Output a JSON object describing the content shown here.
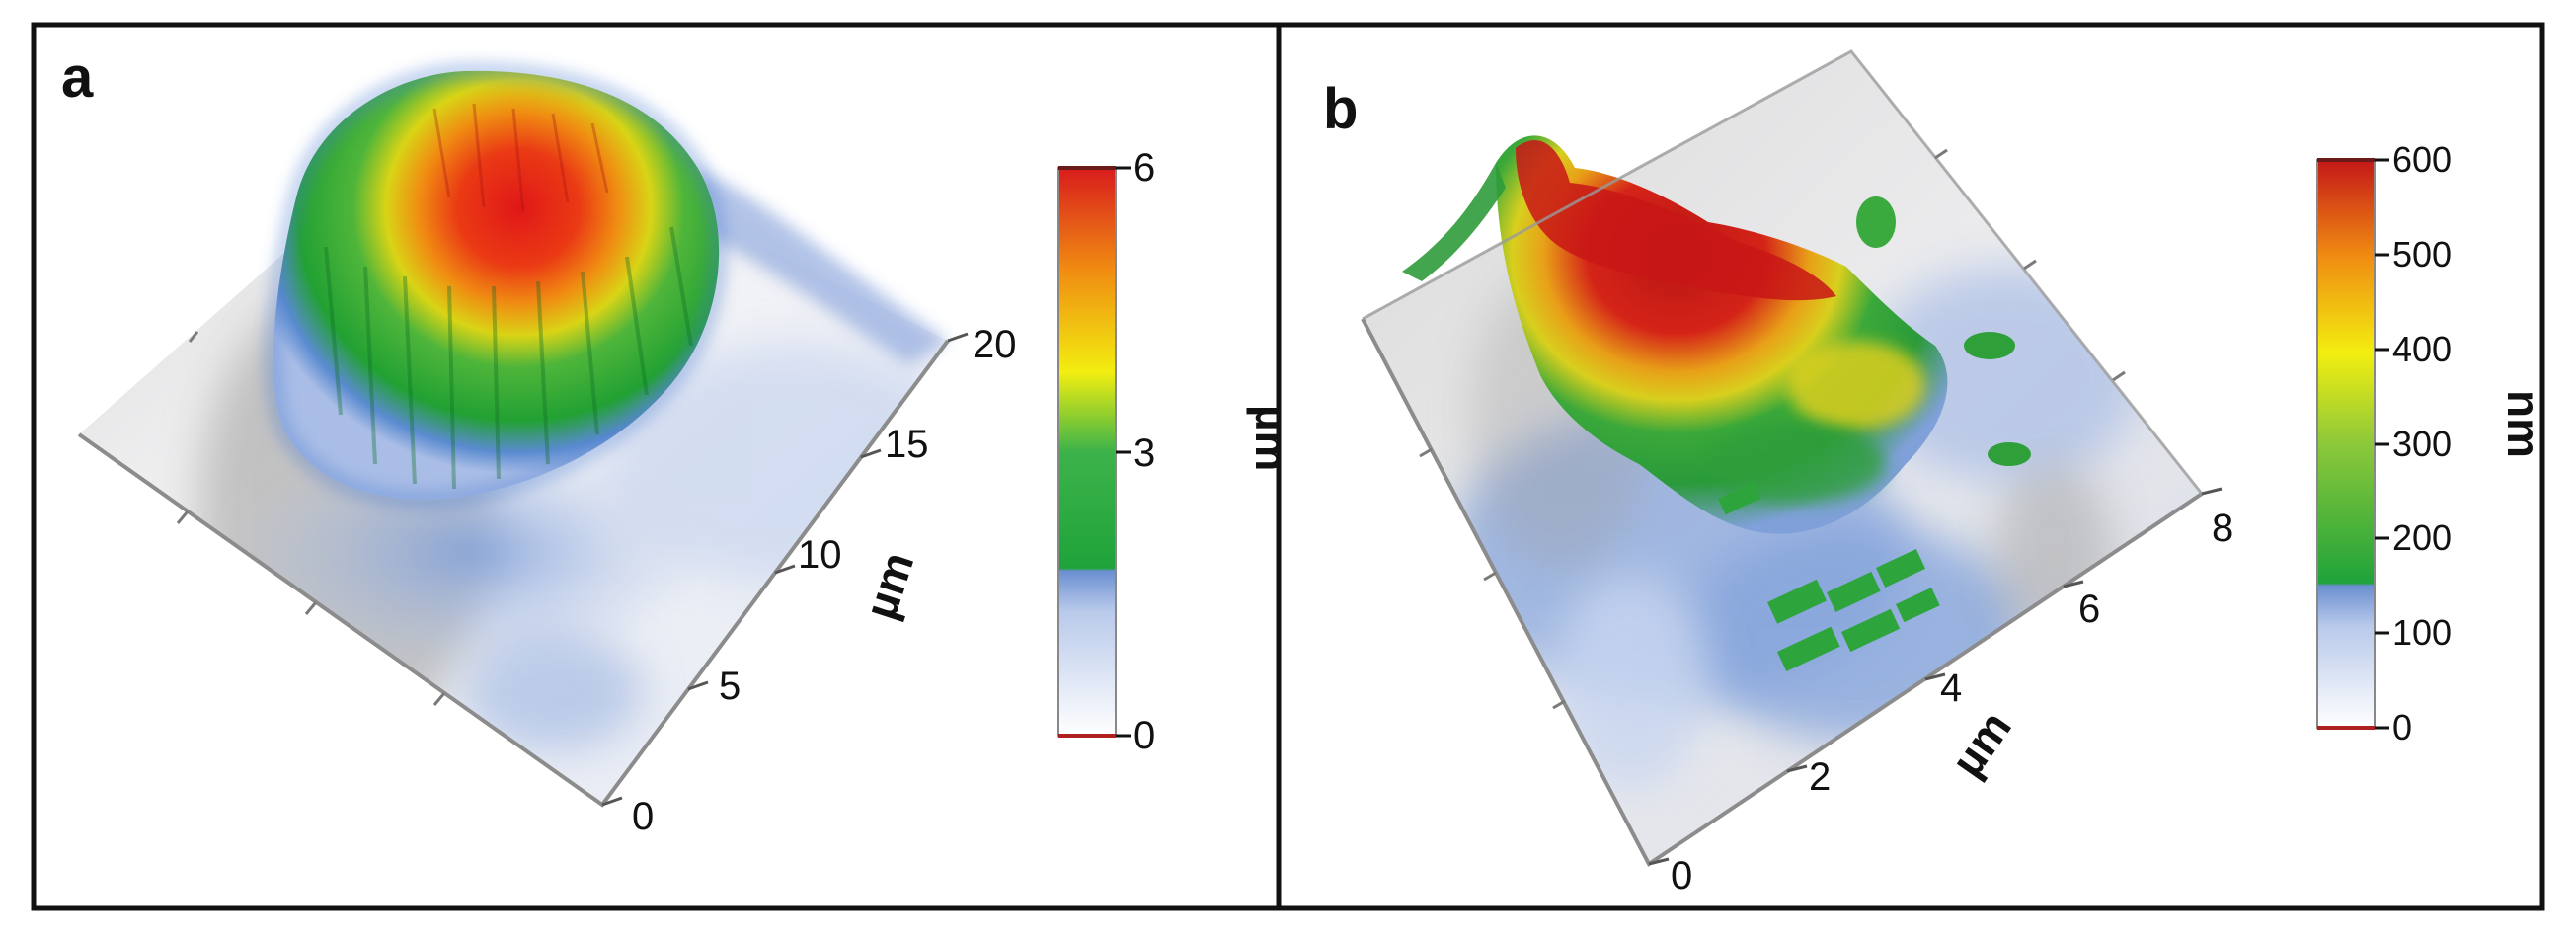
{
  "figure": {
    "panels": [
      {
        "label": "a",
        "surface_type": "3D topography (AFM)",
        "axis_ticks": [
          "0",
          "5",
          "10",
          "15",
          "20"
        ],
        "axis_unit": "µm",
        "colorbar": {
          "ticks": [
            "0",
            "3",
            "6"
          ],
          "unit": "µm",
          "min": 0,
          "max": 6
        },
        "peak_height": 6
      },
      {
        "label": "b",
        "surface_type": "3D topography (AFM)",
        "axis_ticks": [
          "0",
          "2",
          "4",
          "6",
          "8"
        ],
        "axis_unit": "µm",
        "colorbar": {
          "ticks": [
            "0",
            "100",
            "200",
            "300",
            "400",
            "500",
            "600"
          ],
          "unit": "nm",
          "min": 0,
          "max": 600
        },
        "peak_height": 600
      }
    ],
    "colors": {
      "low": "#ffffff",
      "blue": "#6b8fd1",
      "green": "#1fa33a",
      "yellow": "#f2ee10",
      "orange": "#f08c12",
      "red": "#d81c1c",
      "border": "#111111"
    }
  }
}
